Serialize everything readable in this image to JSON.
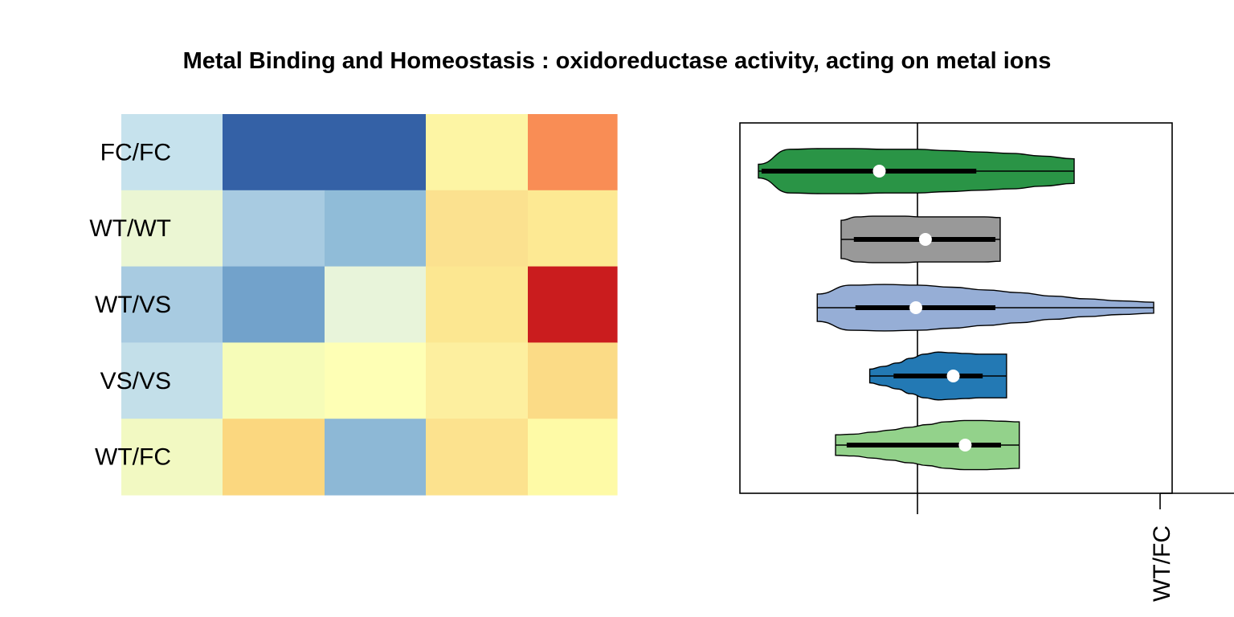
{
  "title": "Metal Binding and Homeostasis : oxidoreductase activity, acting on metal ions",
  "chart_data": [
    {
      "type": "heatmap",
      "rows": [
        "FC/FC",
        "WT/WT",
        "WT/VS",
        "VS/VS",
        "WT/FC"
      ],
      "cells": [
        [
          "#c6e2ed",
          "#3461a6",
          "#3461a6",
          "#fdf5a4",
          "#f98d55"
        ],
        [
          "#ebf6d3",
          "#a8cbe1",
          "#90bcd8",
          "#fbe18f",
          "#fde993"
        ],
        [
          "#a8cbe1",
          "#72a2cb",
          "#e8f4da",
          "#fce791",
          "#ca1c1e"
        ],
        [
          "#c3dfe9",
          "#f6fcb8",
          "#feffb5",
          "#fdef9f",
          "#fbdb86"
        ],
        [
          "#f2f9c2",
          "#fbd77f",
          "#8db8d6",
          "#fce28e",
          "#fefaa6"
        ]
      ]
    },
    {
      "type": "violin",
      "categories": [
        "FC/FC",
        "WT/WT",
        "WT/VS",
        "VS/VS",
        "WT/FC"
      ],
      "colors": [
        "#2a9446",
        "#999999",
        "#96aed6",
        "#2379b4",
        "#93d28b"
      ],
      "reference_line": 0,
      "tick_labels": [
        "WT/FC"
      ],
      "series": [
        {
          "name": "FC/FC",
          "min": -2.0,
          "q1": -1.96,
          "median": -0.48,
          "q3": 0.74,
          "max": 1.97,
          "half_width": [
            0.1,
            0.32,
            0.33,
            0.33,
            0.32,
            0.32,
            0.3,
            0.28,
            0.26,
            0.22,
            0.18
          ]
        },
        {
          "name": "WT/WT",
          "min": -0.96,
          "q1": -0.8,
          "median": 0.1,
          "q3": 0.98,
          "max": 1.04,
          "half_width": [
            0.28,
            0.33,
            0.34,
            0.34,
            0.34,
            0.33,
            0.33,
            0.33,
            0.33,
            0.33,
            0.32
          ]
        },
        {
          "name": "WT/VS",
          "min": -1.26,
          "q1": -0.78,
          "median": -0.02,
          "q3": 0.98,
          "max": 2.97,
          "half_width": [
            0.2,
            0.33,
            0.34,
            0.33,
            0.3,
            0.26,
            0.22,
            0.17,
            0.13,
            0.1,
            0.08
          ]
        },
        {
          "name": "VS/VS",
          "min": -0.6,
          "q1": -0.3,
          "median": 0.45,
          "q3": 0.82,
          "max": 1.12,
          "half_width": [
            0.1,
            0.14,
            0.19,
            0.26,
            0.32,
            0.35,
            0.34,
            0.33,
            0.32,
            0.32,
            0.32
          ]
        },
        {
          "name": "WT/FC",
          "min": -1.03,
          "q1": -0.89,
          "median": 0.6,
          "q3": 1.05,
          "max": 1.28,
          "half_width": [
            0.15,
            0.16,
            0.19,
            0.22,
            0.26,
            0.3,
            0.34,
            0.36,
            0.36,
            0.35,
            0.34
          ]
        }
      ]
    }
  ]
}
